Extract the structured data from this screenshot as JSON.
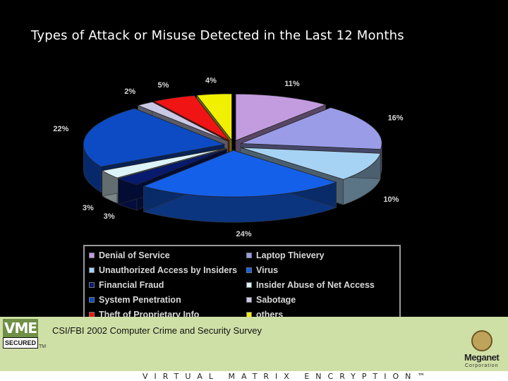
{
  "chart_data": {
    "type": "pie",
    "title": "Types of Attack or Misuse Detected in the Last 12 Months",
    "slices": [
      {
        "label": "Denial of Service",
        "value": 11,
        "value_label": "11%",
        "color": "#c39ce0"
      },
      {
        "label": "Laptop Thievery",
        "value": 16,
        "value_label": "16%",
        "color": "#9a9ce8"
      },
      {
        "label": "Unauthorized Access by Insiders",
        "value": 10,
        "value_label": "10%",
        "color": "#a6d2f4"
      },
      {
        "label": "Virus",
        "value": 24,
        "value_label": "24%",
        "color": "#1560e8"
      },
      {
        "label": "Financial Fraud",
        "value": 3,
        "value_label": "3%",
        "color": "#071a6e"
      },
      {
        "label": "Insider Abuse of Net Access",
        "value": 3,
        "value_label": "3%",
        "color": "#dcf3f8"
      },
      {
        "label": "System Penetration",
        "value": 22,
        "value_label": "22%",
        "color": "#0d4bc4"
      },
      {
        "label": "Sabotage",
        "value": 2,
        "value_label": "2%",
        "color": "#c9c9e6"
      },
      {
        "label": "Theft of Proprietary Info",
        "value": 5,
        "value_label": "5%",
        "color": "#f01414"
      },
      {
        "label": "others",
        "value": 4,
        "value_label": "4%",
        "color": "#f0f000"
      }
    ],
    "legend_position": "bottom"
  },
  "source": "CSI/FBI 2002 Computer Crime and Security Survey",
  "branding": {
    "vme_top": "VME",
    "vme_bottom": "SECURED",
    "vme_tm": "TM",
    "company": "Meganet",
    "company_sub": "Corporation",
    "tagline": "VIRTUAL MATRIX ENCRYPTION™"
  },
  "colors": {
    "background": "#000000",
    "footer_band": "#cfe0a6",
    "title_text": "#ffffff"
  }
}
